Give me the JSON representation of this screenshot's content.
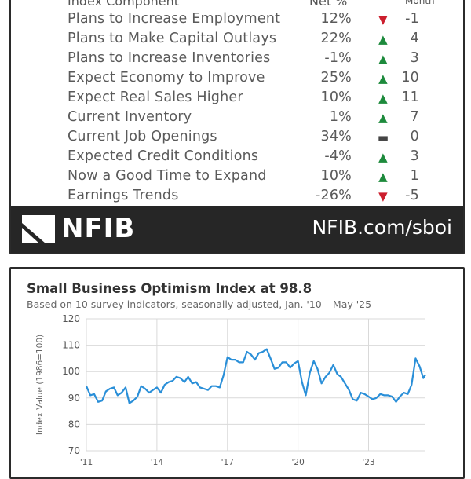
{
  "table": {
    "header_component": "Index Component",
    "header_net": "Net %",
    "header_month": "Month",
    "rows": [
      {
        "name": "Plans to Increase Employment",
        "net": "12%",
        "direction": "down",
        "change": "-1"
      },
      {
        "name": "Plans to Make Capital Outlays",
        "net": "22%",
        "direction": "up",
        "change": "4"
      },
      {
        "name": "Plans to Increase Inventories",
        "net": "-1%",
        "direction": "up",
        "change": "3"
      },
      {
        "name": "Expect Economy to Improve",
        "net": "25%",
        "direction": "up",
        "change": "10"
      },
      {
        "name": "Expect Real Sales Higher",
        "net": "10%",
        "direction": "up",
        "change": "11"
      },
      {
        "name": "Current Inventory",
        "net": "1%",
        "direction": "up",
        "change": "7"
      },
      {
        "name": "Current Job Openings",
        "net": "34%",
        "direction": "flat",
        "change": "0"
      },
      {
        "name": "Expected Credit Conditions",
        "net": "-4%",
        "direction": "up",
        "change": "3"
      },
      {
        "name": "Now a Good Time to Expand",
        "net": "10%",
        "direction": "up",
        "change": "1"
      },
      {
        "name": "Earnings Trends",
        "net": "-26%",
        "direction": "down",
        "change": "-5"
      }
    ]
  },
  "footer": {
    "logo_text": "NFIB",
    "url": "NFIB.com/sboi",
    "bg_color": "#262626"
  },
  "icons": {
    "up": "triangle-up-icon",
    "down": "triangle-down-icon",
    "flat": "dash-icon"
  },
  "colors": {
    "up": "#1d8a3c",
    "down": "#cc1f2e",
    "line": "#2a8fd8"
  },
  "chart_data": {
    "type": "line",
    "title": "Small Business Optimism Index at 98.8",
    "subtitle": "Based on 10 survey indicators, seasonally adjusted,  Jan. '10 – May '25",
    "ylabel": "Index Value (1986=100)",
    "xlabel": "",
    "ylim": [
      70,
      120
    ],
    "yticks": [
      70,
      80,
      90,
      100,
      110,
      120
    ],
    "xticks": [
      {
        "label": "'11",
        "x": 2011
      },
      {
        "label": "'14",
        "x": 2014
      },
      {
        "label": "'17",
        "x": 2017
      },
      {
        "label": "'20",
        "x": 2020
      },
      {
        "label": "'23",
        "x": 2023
      }
    ],
    "xlim": [
      2011,
      2025.42
    ],
    "grid": true,
    "series": [
      {
        "x": [
          2011.0,
          2011.17,
          2011.33,
          2011.5,
          2011.67,
          2011.83,
          2012.0,
          2012.17,
          2012.33,
          2012.5,
          2012.67,
          2012.83,
          2013.0,
          2013.17,
          2013.33,
          2013.5,
          2013.67,
          2013.83,
          2014.0,
          2014.17,
          2014.33,
          2014.5,
          2014.67,
          2014.83,
          2015.0,
          2015.17,
          2015.33,
          2015.5,
          2015.67,
          2015.83,
          2016.0,
          2016.17,
          2016.33,
          2016.5,
          2016.67,
          2016.83,
          2017.0,
          2017.17,
          2017.33,
          2017.5,
          2017.67,
          2017.83,
          2018.0,
          2018.17,
          2018.33,
          2018.5,
          2018.67,
          2018.83,
          2019.0,
          2019.17,
          2019.33,
          2019.5,
          2019.67,
          2019.83,
          2020.0,
          2020.17,
          2020.33,
          2020.5,
          2020.67,
          2020.83,
          2021.0,
          2021.17,
          2021.33,
          2021.5,
          2021.67,
          2021.83,
          2022.0,
          2022.17,
          2022.33,
          2022.5,
          2022.67,
          2022.83,
          2023.0,
          2023.17,
          2023.33,
          2023.5,
          2023.67,
          2023.83,
          2024.0,
          2024.17,
          2024.33,
          2024.5,
          2024.67,
          2024.83,
          2025.0,
          2025.17,
          2025.33,
          2025.42
        ],
        "y": [
          94.5,
          91.0,
          91.5,
          88.5,
          89.0,
          92.5,
          93.5,
          94.0,
          91.0,
          92.0,
          94.0,
          88.0,
          89.0,
          90.5,
          94.5,
          93.5,
          92.0,
          93.0,
          94.0,
          92.0,
          95.0,
          96.0,
          96.5,
          98.0,
          97.5,
          96.0,
          98.0,
          95.5,
          96.0,
          94.0,
          93.5,
          93.0,
          94.5,
          94.5,
          94.0,
          98.5,
          105.5,
          104.5,
          104.5,
          103.5,
          103.5,
          107.5,
          106.5,
          104.5,
          107.0,
          107.5,
          108.5,
          105.0,
          101.0,
          101.5,
          103.5,
          103.5,
          101.5,
          103.0,
          104.0,
          96.0,
          91.0,
          99.5,
          104.0,
          101.0,
          95.5,
          98.0,
          99.5,
          102.5,
          99.0,
          98.0,
          95.5,
          93.0,
          89.5,
          89.0,
          92.0,
          91.5,
          90.5,
          89.5,
          90.0,
          91.5,
          91.0,
          91.0,
          90.5,
          88.5,
          90.5,
          92.0,
          91.5,
          95.0,
          105.0,
          102.0,
          97.5,
          98.8
        ]
      }
    ]
  }
}
